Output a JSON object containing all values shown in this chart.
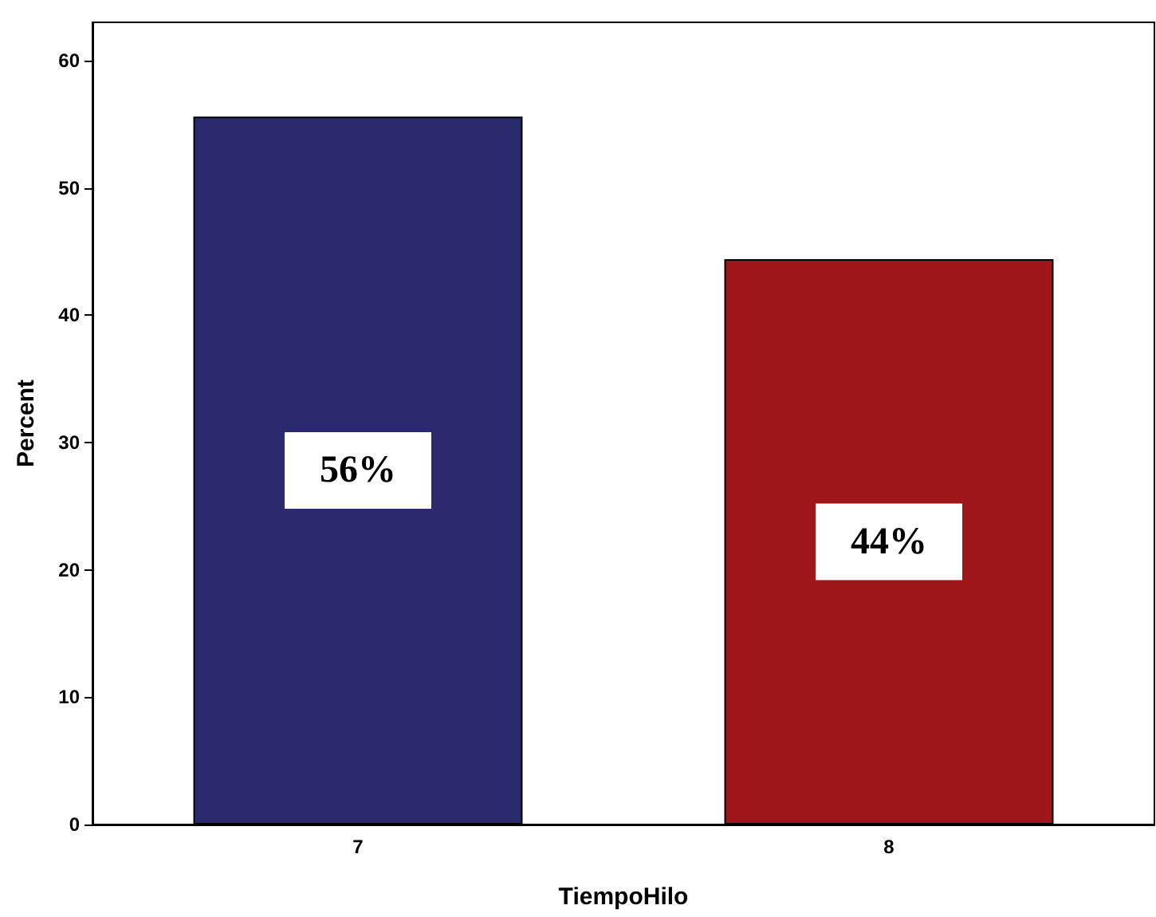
{
  "chart_data": {
    "type": "bar",
    "xlabel": "TiempoHilo",
    "ylabel": "Percent",
    "categories": [
      "7",
      "8"
    ],
    "values": [
      55.6,
      44.4
    ],
    "colors": [
      "#2a2a6e",
      "#a0171b"
    ],
    "value_labels": [
      "56%",
      "44%"
    ],
    "ylim": [
      0,
      63
    ],
    "yticks": [
      0,
      10,
      20,
      30,
      40,
      50,
      60
    ],
    "grid": false
  }
}
